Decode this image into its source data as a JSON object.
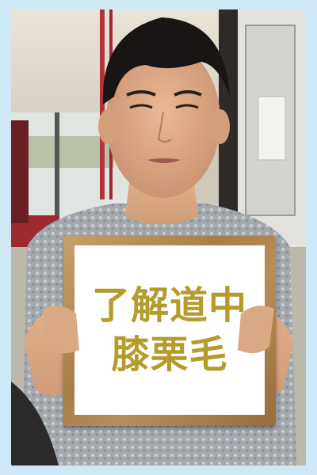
{
  "sign": {
    "line1": "了解道中",
    "line2": "膝栗毛"
  },
  "colors": {
    "border": "#cfe8f6",
    "sign_text": "#b59a2c",
    "shirt": "#9a9fa4",
    "skin": "#d9a884",
    "hair": "#1a1616"
  }
}
